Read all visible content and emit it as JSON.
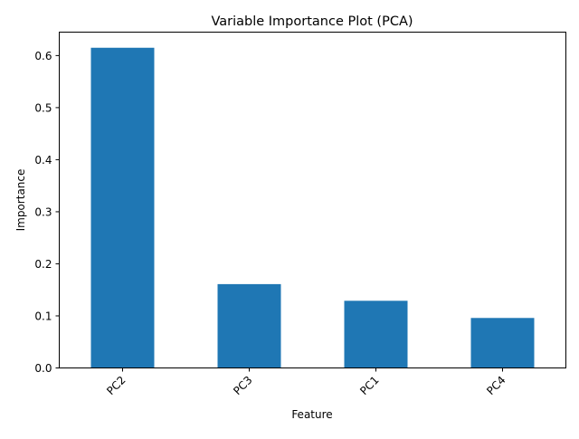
{
  "chart_data": {
    "type": "bar",
    "title": "Variable Importance Plot (PCA)",
    "xlabel": "Feature",
    "ylabel": "Importance",
    "categories": [
      "PC2",
      "PC3",
      "PC1",
      "PC4"
    ],
    "values": [
      0.615,
      0.161,
      0.129,
      0.096
    ],
    "ylim": [
      0,
      0.645
    ],
    "yticks": [
      0.0,
      0.1,
      0.2,
      0.3,
      0.4,
      0.5,
      0.6
    ],
    "ytick_labels": [
      "0.0",
      "0.1",
      "0.2",
      "0.3",
      "0.4",
      "0.5",
      "0.6"
    ],
    "bar_color": "#1f77b4",
    "grid": false,
    "legend": false,
    "xtick_rotation_deg": 45
  }
}
